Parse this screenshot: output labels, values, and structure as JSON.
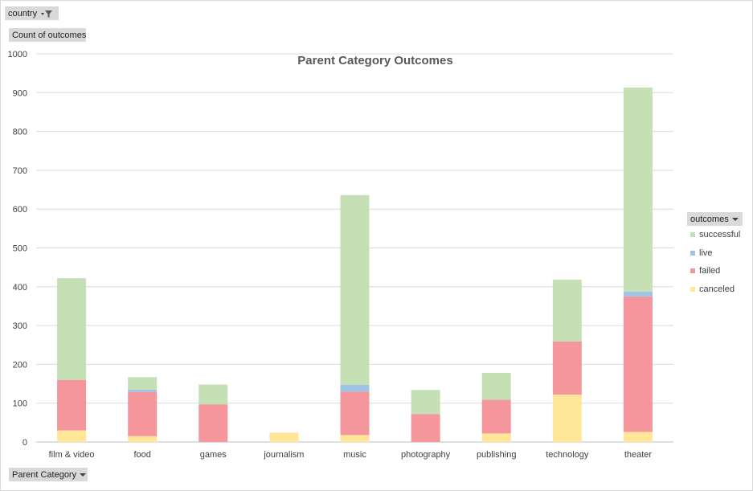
{
  "filter": {
    "country_label": "country"
  },
  "measure": {
    "label": "Count of outcomes"
  },
  "axis_field": {
    "label": "Parent Category"
  },
  "legend_field": {
    "label": "outcomes"
  },
  "chart_data": {
    "type": "bar",
    "stacked": true,
    "title": "Parent Category Outcomes",
    "xlabel": "",
    "ylabel": "",
    "ylim": [
      0,
      1000
    ],
    "yticks": [
      0,
      100,
      200,
      300,
      400,
      500,
      600,
      700,
      800,
      900,
      1000
    ],
    "grid": true,
    "legend_position": "right",
    "categories": [
      "film & video",
      "food",
      "games",
      "journalism",
      "music",
      "photography",
      "publishing",
      "technology",
      "theater"
    ],
    "series": [
      {
        "name": "canceled",
        "color": "#ffe699",
        "values": [
          30,
          15,
          0,
          24,
          18,
          0,
          22,
          122,
          26
        ]
      },
      {
        "name": "failed",
        "color": "#f4969b",
        "values": [
          130,
          114,
          97,
          0,
          112,
          72,
          87,
          137,
          349
        ]
      },
      {
        "name": "live",
        "color": "#9dc3e6",
        "values": [
          0,
          6,
          0,
          0,
          17,
          0,
          0,
          0,
          12
        ]
      },
      {
        "name": "successful",
        "color": "#c5e0b4",
        "values": [
          262,
          32,
          51,
          0,
          489,
          62,
          69,
          159,
          526
        ]
      }
    ],
    "legend_order": [
      "successful",
      "live",
      "failed",
      "canceled"
    ]
  }
}
